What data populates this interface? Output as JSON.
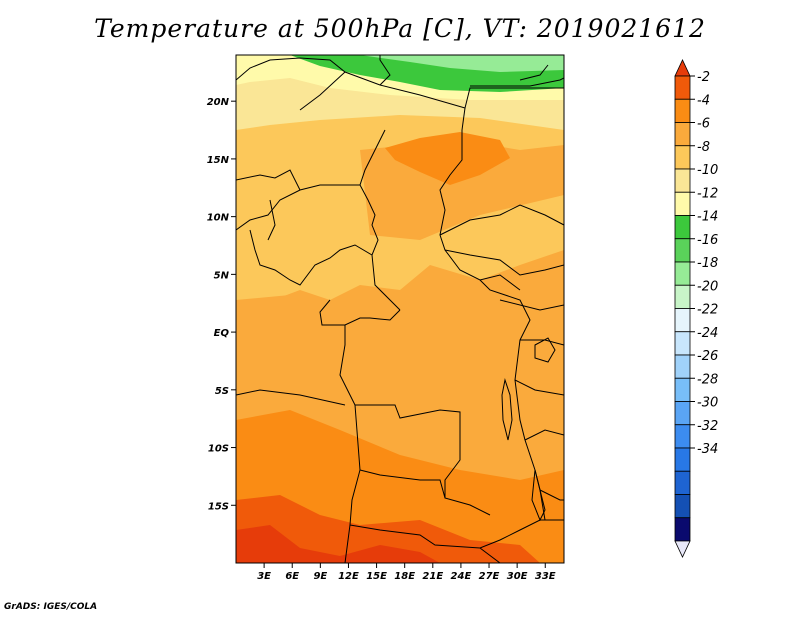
{
  "title": "Temperature at 500hPa [C], VT: 2019021612",
  "credit": "GrADS: IGES/COLA",
  "map": {
    "region": "Central Africa",
    "lon_range": [
      0,
      35
    ],
    "lat_range": [
      -20,
      24
    ],
    "lat_ticks": [
      {
        "value": 20,
        "label": "20N"
      },
      {
        "value": 15,
        "label": "15N"
      },
      {
        "value": 10,
        "label": "10N"
      },
      {
        "value": 5,
        "label": "5N"
      },
      {
        "value": 0,
        "label": "EQ"
      },
      {
        "value": -5,
        "label": "5S"
      },
      {
        "value": -10,
        "label": "10S"
      },
      {
        "value": -15,
        "label": "15S"
      }
    ],
    "lon_ticks": [
      {
        "value": 3,
        "label": "3E"
      },
      {
        "value": 6,
        "label": "6E"
      },
      {
        "value": 9,
        "label": "9E"
      },
      {
        "value": 12,
        "label": "12E"
      },
      {
        "value": 15,
        "label": "15E"
      },
      {
        "value": 18,
        "label": "18E"
      },
      {
        "value": 21,
        "label": "21E"
      },
      {
        "value": 24,
        "label": "24E"
      },
      {
        "value": 27,
        "label": "27E"
      },
      {
        "value": 30,
        "label": "30E"
      },
      {
        "value": 33,
        "label": "33E"
      }
    ]
  },
  "colorbar": {
    "units": "C",
    "colors": [
      "#e8e8f8",
      "#0a0a6e",
      "#1450b4",
      "#1e64d2",
      "#2878e6",
      "#3c8cf0",
      "#5aa5f5",
      "#78bef8",
      "#a0d2fa",
      "#c8e6fc",
      "#e6f5fc",
      "#c8f5c8",
      "#96eb96",
      "#5ad25a",
      "#3cc83c",
      "#fffaaa",
      "#fae696",
      "#fcc85a",
      "#faaa3c",
      "#fa8c14",
      "#f05a0a",
      "#e63c0a"
    ],
    "labels": [
      "-34",
      "-32",
      "-30",
      "-28",
      "-26",
      "-24",
      "-22",
      "-20",
      "-18",
      "-16",
      "-14",
      "-12",
      "-10",
      "-8",
      "-6",
      "-4",
      "-2"
    ]
  }
}
